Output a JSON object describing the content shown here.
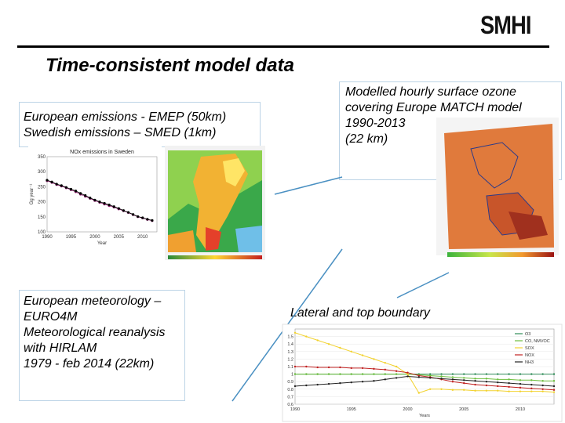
{
  "logo": "SMHI",
  "title": "Time-consistent model data",
  "emissions": {
    "caption_line1": "European emissions - EMEP (50km)",
    "caption_line2": "Swedish emissions – SMED (1km)"
  },
  "ozone": {
    "caption_line1": "Modelled hourly surface ozone",
    "caption_line2": "covering Europe MATCH model",
    "caption_line3": "1990-2013",
    "caption_line4": "(22 km)"
  },
  "meteorology": {
    "caption_line1": "European meteorology –",
    "caption_line2": "EURO4M",
    "caption_line3": "Meteorological reanalysis",
    "caption_line4": "with HIRLAM",
    "caption_line5": "1979 - feb 2014 (22km)"
  },
  "boundary": {
    "caption": "Lateral and top boundary"
  },
  "colors": {
    "connector": "#4a90c2",
    "box_border": "#bcd3e6",
    "orange_map": "#e07a3c"
  },
  "chart_data": [
    {
      "type": "line",
      "title": "NOx emissions in Sweden",
      "xlabel": "Year",
      "ylabel": "Gg year⁻¹",
      "xlim": [
        1990,
        2013
      ],
      "ylim": [
        100,
        350
      ],
      "x_ticks": [
        "1990",
        "1995",
        "2000",
        "2005",
        "2010"
      ],
      "y_ticks": [
        "100",
        "150",
        "200",
        "250",
        "300",
        "350"
      ],
      "x": [
        1990,
        1991,
        1992,
        1993,
        1994,
        1995,
        1996,
        1997,
        1998,
        1999,
        2000,
        2001,
        2002,
        2003,
        2004,
        2005,
        2006,
        2007,
        2008,
        2009,
        2010,
        2011,
        2012
      ],
      "series": [
        {
          "values": [
            270,
            264,
            257,
            252,
            246,
            240,
            233,
            225,
            218,
            211,
            204,
            198,
            192,
            187,
            182,
            176,
            170,
            164,
            157,
            150,
            146,
            141,
            137
          ],
          "color": "#8b1a6b"
        },
        {
          "values": [
            272,
            266,
            259,
            254,
            248,
            242,
            236,
            228,
            221,
            213,
            206,
            200,
            195,
            190,
            184,
            178,
            171,
            165,
            158,
            151,
            147,
            142,
            138
          ],
          "color": "#000000"
        }
      ]
    },
    {
      "type": "line",
      "xlabel": "Years",
      "xlim": [
        1990,
        2013
      ],
      "ylim": [
        0.6,
        1.6
      ],
      "y_ticks": [
        "1.5",
        "1.4",
        "1.3",
        "1.2",
        "1.1",
        "1",
        "0.9",
        "0.8",
        "0.7",
        "0.6"
      ],
      "x_ticks": [
        "1990",
        "1995",
        "2000",
        "2005",
        "2010"
      ],
      "legend": [
        "O3",
        "CO, NMVOC",
        "SOX",
        "NOX",
        "NH3"
      ],
      "legend_position": "top-right",
      "x": [
        1990,
        1991,
        1992,
        1993,
        1994,
        1995,
        1996,
        1997,
        1998,
        1999,
        2000,
        2001,
        2002,
        2003,
        2004,
        2005,
        2006,
        2007,
        2008,
        2009,
        2010,
        2011,
        2012,
        2013
      ],
      "series": [
        {
          "name": "O3",
          "values": [
            1.0,
            1.0,
            1.0,
            1.0,
            1.0,
            1.0,
            1.0,
            1.0,
            1.0,
            1.0,
            1.0,
            1.0,
            1.0,
            1.0,
            1.0,
            1.0,
            1.0,
            1.0,
            1.0,
            1.0,
            1.0,
            1.0,
            1.0,
            1.0
          ],
          "color": "#2e8b57"
        },
        {
          "name": "CO, NMVOC",
          "values": [
            1.0,
            1.0,
            1.0,
            1.0,
            1.0,
            1.0,
            1.0,
            1.0,
            1.0,
            1.0,
            1.0,
            0.99,
            0.98,
            0.97,
            0.96,
            0.95,
            0.94,
            0.94,
            0.93,
            0.93,
            0.92,
            0.92,
            0.91,
            0.91
          ],
          "color": "#6fbf3f"
        },
        {
          "name": "SOX",
          "values": [
            1.55,
            1.5,
            1.45,
            1.4,
            1.35,
            1.3,
            1.25,
            1.2,
            1.15,
            1.1,
            1.0,
            0.75,
            0.8,
            0.8,
            0.79,
            0.79,
            0.78,
            0.78,
            0.78,
            0.77,
            0.77,
            0.77,
            0.77,
            0.76
          ],
          "color": "#f2d22e"
        },
        {
          "name": "NOX",
          "values": [
            1.1,
            1.1,
            1.09,
            1.09,
            1.09,
            1.08,
            1.08,
            1.07,
            1.06,
            1.04,
            1.02,
            0.98,
            0.96,
            0.93,
            0.9,
            0.88,
            0.86,
            0.85,
            0.84,
            0.83,
            0.82,
            0.81,
            0.8,
            0.79
          ],
          "color": "#c02020"
        },
        {
          "name": "NH3",
          "values": [
            0.84,
            0.85,
            0.86,
            0.87,
            0.88,
            0.89,
            0.9,
            0.91,
            0.93,
            0.95,
            0.97,
            0.96,
            0.95,
            0.94,
            0.93,
            0.92,
            0.91,
            0.9,
            0.89,
            0.88,
            0.87,
            0.86,
            0.85,
            0.84
          ],
          "color": "#222222"
        }
      ]
    }
  ]
}
